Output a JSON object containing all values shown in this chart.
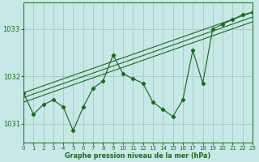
{
  "title": "Graphe pression niveau de la mer (hPa)",
  "background_color": "#c8e8e8",
  "grid_color": "#aacccc",
  "line_color": "#1a6b1a",
  "x_min": 0,
  "x_max": 23,
  "y_min": 1030.6,
  "y_max": 1033.55,
  "y_ticks": [
    1031,
    1032,
    1033
  ],
  "x_ticks": [
    0,
    1,
    2,
    3,
    4,
    5,
    6,
    7,
    8,
    9,
    10,
    11,
    12,
    13,
    14,
    15,
    16,
    17,
    18,
    19,
    20,
    21,
    22,
    23
  ],
  "series_main": {
    "x": [
      0,
      1,
      2,
      3,
      4,
      5,
      6,
      7,
      8,
      9,
      10,
      11,
      12,
      13,
      14,
      15,
      16,
      17,
      18,
      19,
      20,
      21,
      22,
      23
    ],
    "y": [
      1031.65,
      1031.2,
      1031.4,
      1031.5,
      1031.35,
      1030.85,
      1031.35,
      1031.75,
      1031.9,
      1032.45,
      1032.05,
      1031.95,
      1031.85,
      1031.45,
      1031.3,
      1031.15,
      1031.5,
      1032.55,
      1031.85,
      1033.0,
      1033.1,
      1033.2,
      1033.3,
      1033.35
    ]
  },
  "linear1": {
    "x": [
      0,
      23
    ],
    "y": [
      1031.65,
      1033.35
    ]
  },
  "linear2": {
    "x": [
      0,
      23
    ],
    "y": [
      1031.55,
      1033.25
    ]
  },
  "linear3": {
    "x": [
      0,
      23
    ],
    "y": [
      1031.45,
      1033.15
    ]
  }
}
